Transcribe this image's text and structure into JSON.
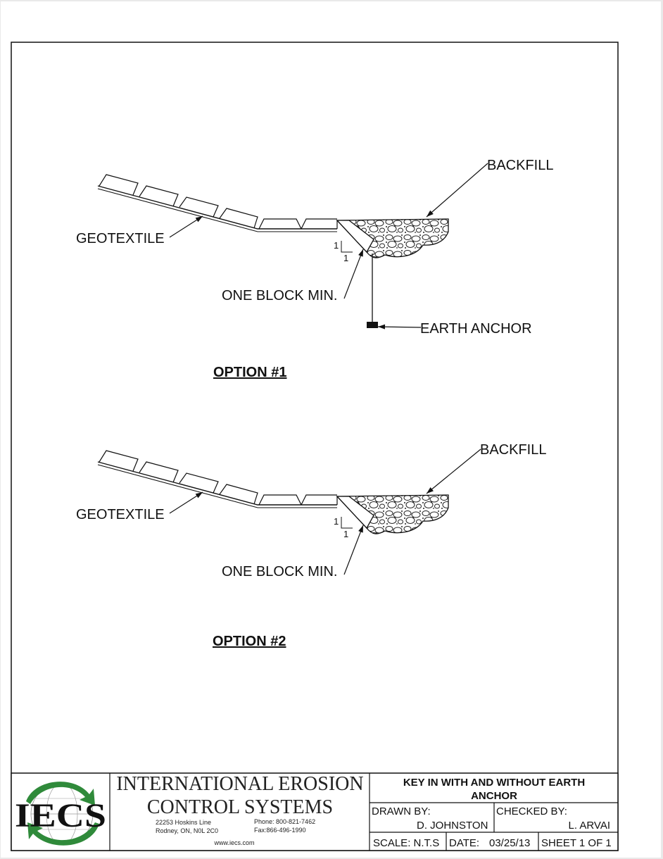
{
  "drawing": {
    "option1": {
      "title": "OPTION #1",
      "labels": {
        "backfill": "BACKFILL",
        "geotextile": "GEOTEXTILE",
        "one_block_min": "ONE BLOCK MIN.",
        "earth_anchor": "EARTH ANCHOR",
        "slope_rise": "1",
        "slope_run": "1"
      }
    },
    "option2": {
      "title": "OPTION #2",
      "labels": {
        "backfill": "BACKFILL",
        "geotextile": "GEOTEXTILE",
        "one_block_min": "ONE BLOCK MIN.",
        "slope_rise": "1",
        "slope_run": "1"
      }
    }
  },
  "title_block": {
    "logo_text": "IECS",
    "company_line1": "INTERNATIONAL EROSION",
    "company_line2": "CONTROL SYSTEMS",
    "address_line1": "22253 Hoskins Line",
    "address_line2": "Rodney, ON, N0L 2C0",
    "phone": "Phone: 800-821-7462",
    "fax": "Fax:866-496-1990",
    "website": "www.iecs.com",
    "drawing_title_line1": "KEY IN WITH AND WITHOUT EARTH",
    "drawing_title_line2": "ANCHOR",
    "drawn_by_label": "DRAWN BY:",
    "drawn_by": "D. JOHNSTON",
    "checked_by_label": "CHECKED BY:",
    "checked_by": "L. ARVAI",
    "scale": "SCALE: N.T.S",
    "date_label": "DATE:",
    "date": "03/25/13",
    "sheet": "SHEET 1 OF 1"
  },
  "colors": {
    "logo_green": "#2f8a3a",
    "line": "#111111"
  }
}
